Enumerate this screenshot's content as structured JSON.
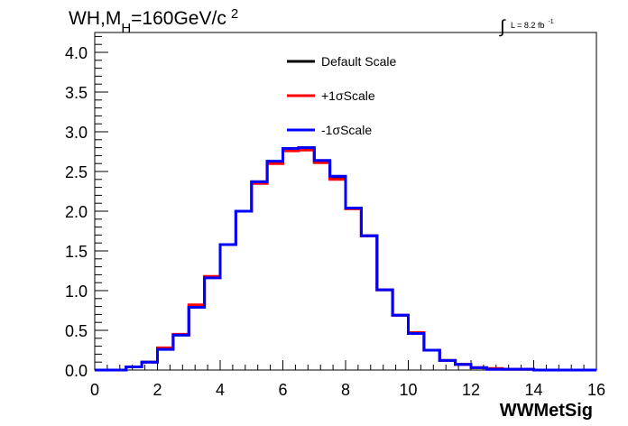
{
  "chart_data": {
    "type": "line",
    "title": {
      "main": "WH,M",
      "subscript": "H",
      "rest": "=160GeV/c",
      "superscript": "2"
    },
    "lumi": {
      "integral": "∫",
      "text": "L = 8.2 fb",
      "superscript": "-1"
    },
    "xlabel": "WWMetSig",
    "ylabel": "",
    "xlim": [
      0,
      16
    ],
    "ylim": [
      0,
      4.25
    ],
    "xticks": [
      "0",
      "2",
      "4",
      "6",
      "8",
      "10",
      "12",
      "14",
      "16"
    ],
    "yticks": [
      "0.0",
      "0.5",
      "1.0",
      "1.5",
      "2.0",
      "2.5",
      "3.0",
      "3.5",
      "4.0"
    ],
    "bin_edges": [
      0,
      0.5,
      1,
      1.5,
      2,
      2.5,
      3,
      3.5,
      4,
      4.5,
      5,
      5.5,
      6,
      6.5,
      7,
      7.5,
      8,
      8.5,
      9,
      9.5,
      10,
      10.5,
      11,
      11.5,
      12,
      12.5,
      13,
      13.5,
      14,
      14.5,
      15,
      15.5,
      16
    ],
    "series": [
      {
        "name": "Default Scale",
        "color": "#000000",
        "values": [
          0,
          0,
          0.04,
          0.1,
          0.27,
          0.44,
          0.8,
          1.17,
          1.58,
          2.0,
          2.37,
          2.62,
          2.78,
          2.8,
          2.63,
          2.43,
          2.04,
          1.69,
          1.01,
          0.69,
          0.47,
          0.25,
          0.12,
          0.07,
          0.03,
          0.01,
          0.01,
          0.01,
          0,
          0,
          0,
          0
        ]
      },
      {
        "name": "+1σScale",
        "color": "#ff0000",
        "values": [
          0,
          0,
          0.04,
          0.1,
          0.28,
          0.45,
          0.82,
          1.18,
          1.58,
          2.0,
          2.35,
          2.6,
          2.76,
          2.77,
          2.61,
          2.4,
          2.03,
          1.69,
          1.01,
          0.69,
          0.47,
          0.25,
          0.12,
          0.07,
          0.03,
          0.02,
          0.01,
          0.01,
          0,
          0,
          0,
          0
        ]
      },
      {
        "name": "-1σScale",
        "color": "#0000ff",
        "values": [
          0,
          0,
          0.04,
          0.1,
          0.26,
          0.44,
          0.79,
          1.16,
          1.58,
          2.0,
          2.37,
          2.63,
          2.79,
          2.8,
          2.64,
          2.44,
          2.04,
          1.69,
          1.01,
          0.69,
          0.46,
          0.25,
          0.12,
          0.07,
          0.03,
          0.01,
          0.01,
          0.01,
          0,
          0,
          0,
          0
        ]
      }
    ],
    "legend_position": "top-center",
    "grid": false
  }
}
